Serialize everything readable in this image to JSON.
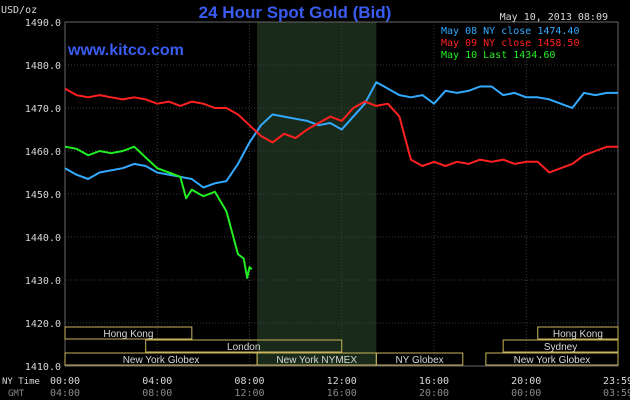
{
  "header": {
    "title": "24 Hour Spot Gold (Bid)",
    "date": "May 10, 2013 08:09",
    "watermark": "www.kitco.com",
    "unit": "USD/oz"
  },
  "legend": [
    {
      "text": "May 08 NY close 1474.40",
      "color": "#33aaff"
    },
    {
      "text": "May 09 NY close 1458.50",
      "color": "#ff2020"
    },
    {
      "text": "May 10 Last 1434.60",
      "color": "#22ee22"
    }
  ],
  "axis": {
    "row1_label": "NY Time",
    "row2_label": "GMT",
    "ny_ticks": [
      "00:00",
      "04:00",
      "08:00",
      "12:00",
      "16:00",
      "20:00",
      "23:59"
    ],
    "gmt_ticks": [
      "04:00",
      "08:00",
      "12:00",
      "16:00",
      "20:00",
      "00:00",
      "03:59"
    ],
    "y_ticks": [
      "1490.0",
      "1480.0",
      "1470.0",
      "1460.0",
      "1450.0",
      "1440.0",
      "1430.0",
      "1420.0",
      "1410.0"
    ]
  },
  "sessions": {
    "row1": [
      {
        "label": "Hong Kong",
        "start": 0.0,
        "end": 5.5
      },
      {
        "label": "Hong Kong",
        "start": 20.5,
        "end": 23.98
      }
    ],
    "row2": [
      {
        "label": "London",
        "start": 3.5,
        "end": 12.0
      },
      {
        "label": "Sydney",
        "start": 19.0,
        "end": 23.98
      }
    ],
    "row3": [
      {
        "label": "New York Globex",
        "start": 0.0,
        "end": 8.33
      },
      {
        "label": "New York NYMEX",
        "start": 8.33,
        "end": 13.5
      },
      {
        "label": "NY Globex",
        "start": 13.5,
        "end": 17.25
      },
      {
        "label": "New York Globex",
        "start": 18.25,
        "end": 23.98
      }
    ]
  },
  "colors": {
    "background": "#000000",
    "grid": "#3c3c3c",
    "axis_text": "#d8d8d8",
    "title": "#3a5cf0",
    "watermark": "#3a5cf0",
    "nymex_shade": "#1a2a1a",
    "session_box": "#c8b45a"
  },
  "chart_data": {
    "type": "line",
    "title": "24 Hour Spot Gold (Bid)",
    "ylabel": "USD/oz",
    "xlabel": "NY Time",
    "ylim": [
      1410,
      1490
    ],
    "xlim": [
      0,
      23.98
    ],
    "nymex_hours": [
      8.33,
      13.5
    ],
    "grid": true,
    "legend_position": "top-right",
    "series": [
      {
        "name": "May 08 NY close 1474.40",
        "color": "#33aaff",
        "x": [
          0.0,
          0.5,
          1.0,
          1.5,
          2.0,
          2.5,
          3.0,
          3.5,
          4.0,
          4.5,
          5.0,
          5.5,
          6.0,
          6.5,
          7.0,
          7.5,
          8.0,
          8.5,
          9.0,
          9.5,
          10.0,
          10.5,
          11.0,
          11.5,
          12.0,
          12.5,
          13.0,
          13.5,
          14.0,
          14.5,
          15.0,
          15.5,
          16.0,
          16.5,
          17.0,
          17.5,
          18.0,
          18.5,
          19.0,
          19.5,
          20.0,
          20.5,
          21.0,
          21.5,
          22.0,
          22.5,
          23.0,
          23.5,
          23.98
        ],
        "y": [
          1456.0,
          1454.5,
          1453.5,
          1455.0,
          1455.5,
          1456.0,
          1457.0,
          1456.5,
          1455.0,
          1454.5,
          1454.0,
          1453.5,
          1451.5,
          1452.5,
          1453.0,
          1457.0,
          1462.0,
          1466.0,
          1468.5,
          1468.0,
          1467.5,
          1467.0,
          1466.0,
          1466.5,
          1465.0,
          1468.0,
          1471.0,
          1476.0,
          1474.5,
          1473.0,
          1472.5,
          1473.0,
          1471.0,
          1474.0,
          1473.5,
          1474.0,
          1475.0,
          1475.0,
          1473.0,
          1473.5,
          1472.5,
          1472.5,
          1472.0,
          1471.0,
          1470.0,
          1473.5,
          1473.0,
          1473.5,
          1473.5
        ]
      },
      {
        "name": "May 09 NY close 1458.50",
        "color": "#ff2020",
        "x": [
          0.0,
          0.5,
          1.0,
          1.5,
          2.0,
          2.5,
          3.0,
          3.5,
          4.0,
          4.5,
          5.0,
          5.5,
          6.0,
          6.5,
          7.0,
          7.5,
          8.0,
          8.5,
          9.0,
          9.5,
          10.0,
          10.5,
          11.0,
          11.5,
          12.0,
          12.5,
          13.0,
          13.5,
          14.0,
          14.5,
          15.0,
          15.5,
          16.0,
          16.5,
          17.0,
          17.5,
          18.0,
          18.5,
          19.0,
          19.5,
          20.0,
          20.5,
          21.0,
          21.5,
          22.0,
          22.5,
          23.0,
          23.5,
          23.98
        ],
        "y": [
          1474.5,
          1473.0,
          1472.5,
          1473.0,
          1472.5,
          1472.0,
          1472.5,
          1472.0,
          1471.0,
          1471.5,
          1470.5,
          1471.5,
          1471.0,
          1470.0,
          1470.0,
          1468.5,
          1466.0,
          1463.5,
          1462.0,
          1464.0,
          1463.0,
          1465.0,
          1466.5,
          1468.0,
          1467.0,
          1470.0,
          1471.5,
          1470.5,
          1471.0,
          1468.0,
          1458.0,
          1456.5,
          1457.5,
          1456.5,
          1457.5,
          1457.0,
          1458.0,
          1457.5,
          1458.0,
          1457.0,
          1457.5,
          1457.5,
          1455.0,
          1456.0,
          1457.0,
          1459.0,
          1460.0,
          1461.0,
          1461.0
        ]
      },
      {
        "name": "May 10 Last 1434.60",
        "color": "#22ee22",
        "x": [
          0.0,
          0.5,
          1.0,
          1.5,
          2.0,
          2.5,
          3.0,
          3.5,
          4.0,
          4.5,
          5.0,
          5.25,
          5.5,
          6.0,
          6.5,
          7.0,
          7.25,
          7.5,
          7.75,
          7.9,
          8.0,
          8.1
        ],
        "y": [
          1461.0,
          1460.5,
          1459.0,
          1460.0,
          1459.5,
          1460.0,
          1461.0,
          1458.5,
          1456.0,
          1455.0,
          1454.0,
          1449.0,
          1451.0,
          1449.5,
          1450.5,
          1446.0,
          1441.0,
          1436.0,
          1435.0,
          1430.5,
          1433.0,
          1432.5
        ]
      }
    ]
  }
}
